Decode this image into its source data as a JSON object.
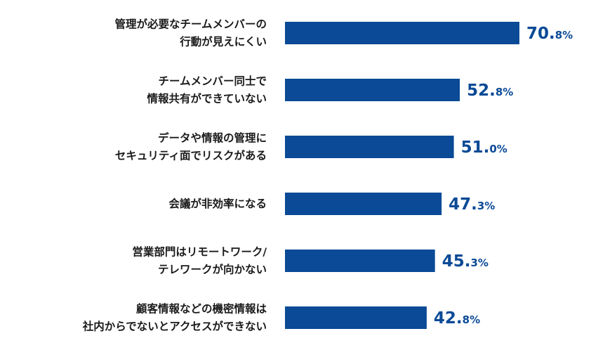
{
  "chart_data": {
    "type": "bar",
    "orientation": "horizontal",
    "categories": [
      [
        "管理が必要なチームメンバーの",
        "行動が見えにくい"
      ],
      [
        "チームメンバー同士で",
        "情報共有ができていない"
      ],
      [
        "データや情報の管理に",
        "セキュリティ面でリスクがある"
      ],
      [
        "会議が非効率になる"
      ],
      [
        "営業部門はリモートワーク/",
        "テレワークが向かない"
      ],
      [
        "顧客情報などの機密情報は",
        "社内からでないとアクセスができない"
      ]
    ],
    "values": [
      70.8,
      52.8,
      51.0,
      47.3,
      45.3,
      42.8
    ],
    "value_labels": [
      {
        "main": "70.",
        "sub": "8%"
      },
      {
        "main": "52.",
        "sub": "8%"
      },
      {
        "main": "51.",
        "sub": "0%"
      },
      {
        "main": "47.",
        "sub": "3%"
      },
      {
        "main": "45.",
        "sub": "3%"
      },
      {
        "main": "42.",
        "sub": "8%"
      }
    ],
    "bar_color": "#0a4a96",
    "label_color": "#0a4a96",
    "xlim": [
      0,
      70.8
    ],
    "grid": false,
    "legend": false
  }
}
